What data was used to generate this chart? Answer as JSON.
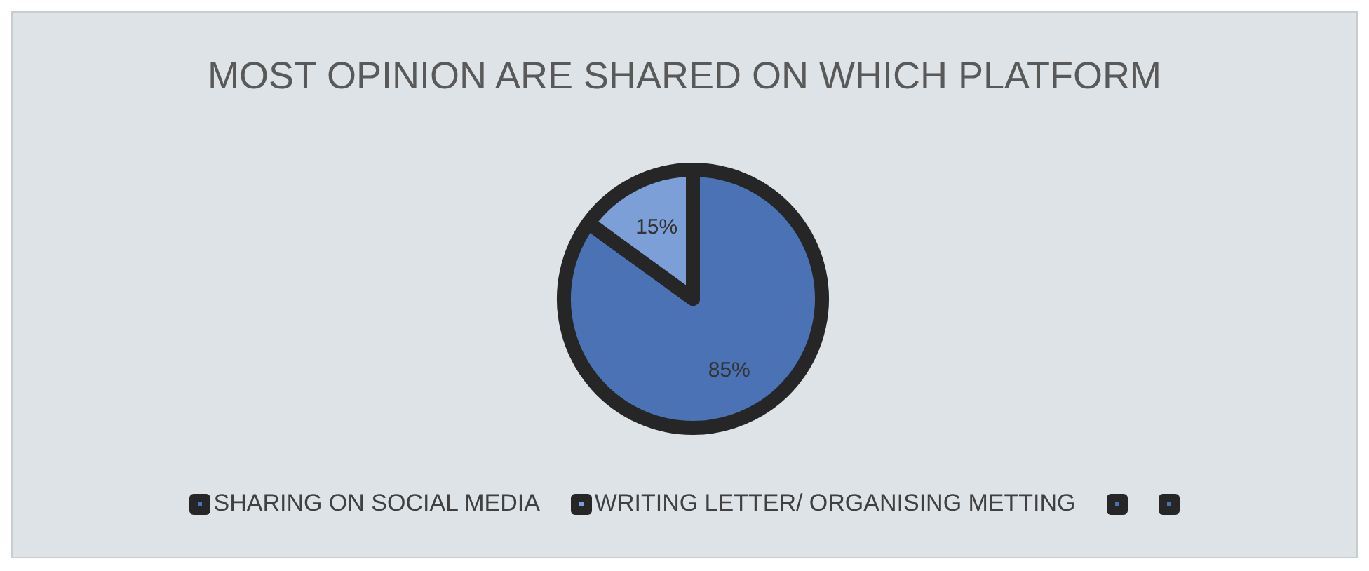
{
  "chart_data": {
    "type": "pie",
    "title": "MOST OPINION ARE SHARED ON WHICH PLATFORM",
    "categories": [
      "SHARING ON SOCIAL MEDIA",
      "WRITING LETTER/ ORGANISING METTING",
      null,
      null
    ],
    "values": [
      85,
      15,
      0,
      0
    ],
    "colors": [
      "#4a72b4",
      "#7b9fd6",
      "#4a72b4",
      "#4a72b4"
    ],
    "value_labels": [
      "85%",
      "15%",
      null,
      null
    ],
    "legend": "bottom"
  }
}
